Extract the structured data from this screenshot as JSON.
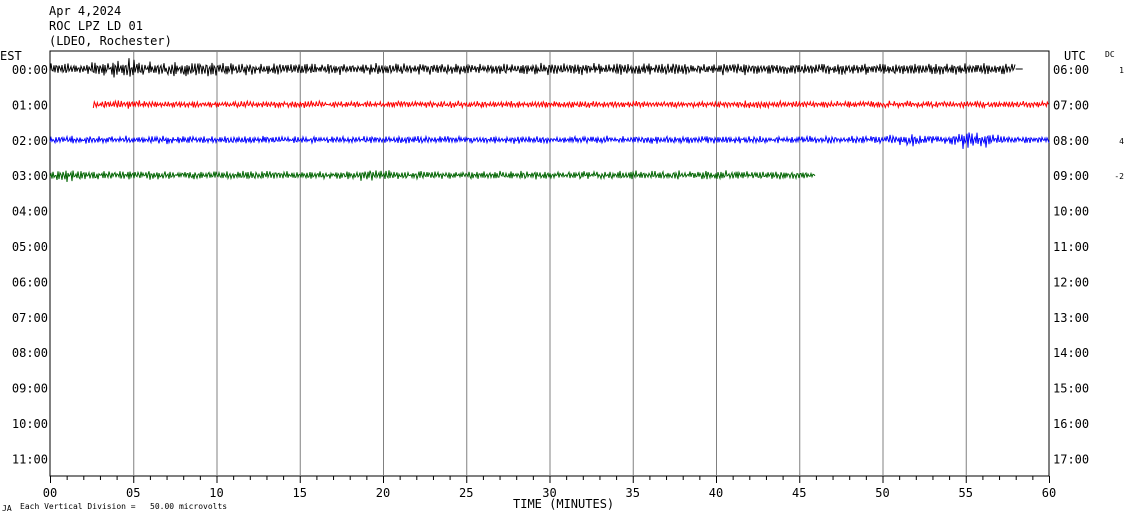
{
  "header": {
    "date": "Apr 4,2024",
    "station": "ROC LPZ LD 01",
    "network": "(LDEO, Rochester)"
  },
  "labels": {
    "left_zone": "EST",
    "right_zone": "UTC",
    "dc": "DC",
    "xlabel": "TIME (MINUTES)",
    "footer_mark": "JA",
    "footer": "Each Vertical Division =   50.00 microvolts"
  },
  "chart_data": {
    "type": "line",
    "title": "ROC LPZ LD 01",
    "xlabel": "TIME (MINUTES)",
    "ylabel": "",
    "xlim": [
      0,
      60
    ],
    "x_ticks": [
      "00",
      "05",
      "10",
      "15",
      "20",
      "25",
      "30",
      "35",
      "40",
      "45",
      "50",
      "55",
      "60"
    ],
    "rows_left": [
      "00:00",
      "01:00",
      "02:00",
      "03:00",
      "04:00",
      "05:00",
      "06:00",
      "07:00",
      "08:00",
      "09:00",
      "10:00",
      "11:00"
    ],
    "rows_right": [
      "06:00",
      "07:00",
      "08:00",
      "09:00",
      "10:00",
      "11:00",
      "12:00",
      "13:00",
      "14:00",
      "15:00",
      "16:00",
      "17:00"
    ],
    "grid": true,
    "series": [
      {
        "row": 0,
        "color": "#000000",
        "start_min": 0.0,
        "end_min": 58.0,
        "dc": "1",
        "amplitude": 1.0,
        "events": [
          {
            "at": 4.5,
            "gain": 1.8
          },
          {
            "at": 8.5,
            "gain": 1.6
          }
        ]
      },
      {
        "row": 1,
        "color": "#ff0000",
        "start_min": 2.6,
        "end_min": 60.0,
        "dc": "",
        "amplitude": 0.55,
        "events": [
          {
            "at": 4.2,
            "gain": 1.4
          }
        ]
      },
      {
        "row": 2,
        "color": "#0000ff",
        "start_min": 0.0,
        "end_min": 60.0,
        "dc": "4",
        "amplitude": 0.6,
        "events": [
          {
            "at": 51.5,
            "gain": 1.8
          },
          {
            "at": 55.5,
            "gain": 2.8
          }
        ]
      },
      {
        "row": 3,
        "color": "#006400",
        "start_min": 0.0,
        "end_min": 46.0,
        "dc": "-2",
        "amplitude": 0.7,
        "events": [
          {
            "at": 1.0,
            "gain": 1.6
          },
          {
            "at": 19.5,
            "gain": 1.4
          }
        ]
      }
    ]
  }
}
